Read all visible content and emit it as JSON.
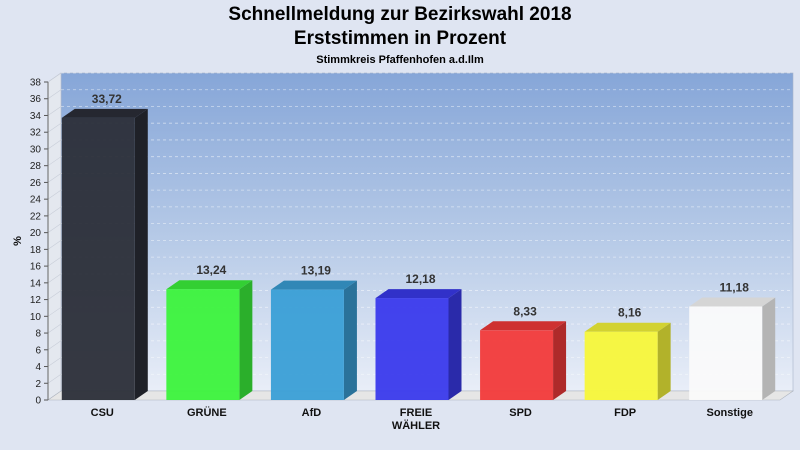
{
  "chart_data": {
    "type": "bar",
    "title": "Schnellmeldung zur Bezirkswahl 2018",
    "subtitle": "Erststimmen in Prozent",
    "subsubtitle": "Stimmkreis Pfaffenhofen a.d.Ilm",
    "ylabel": "%",
    "xlabel": "",
    "ylim": [
      0,
      38
    ],
    "ytick_step": 2,
    "grid": true,
    "categories": [
      "CSU",
      "GRÜNE",
      "AfD",
      "FREIE WÄHLER",
      "SPD",
      "FDP",
      "Sonstige"
    ],
    "category_lines": [
      [
        "CSU"
      ],
      [
        "GRÜNE"
      ],
      [
        "AfD"
      ],
      [
        "FREIE",
        "WÄHLER"
      ],
      [
        "SPD"
      ],
      [
        "FDP"
      ],
      [
        "Sonstige"
      ]
    ],
    "values": [
      33.72,
      13.24,
      13.19,
      12.18,
      8.33,
      8.16,
      11.18
    ],
    "value_labels": [
      "33,72",
      "13,24",
      "13,19",
      "12,18",
      "8,33",
      "8,16",
      "11,18"
    ],
    "colors": [
      "#2b2e38",
      "#3cf33c",
      "#3a9fd6",
      "#3a3aec",
      "#f23a3a",
      "#f7f73a",
      "#fafafa"
    ]
  }
}
